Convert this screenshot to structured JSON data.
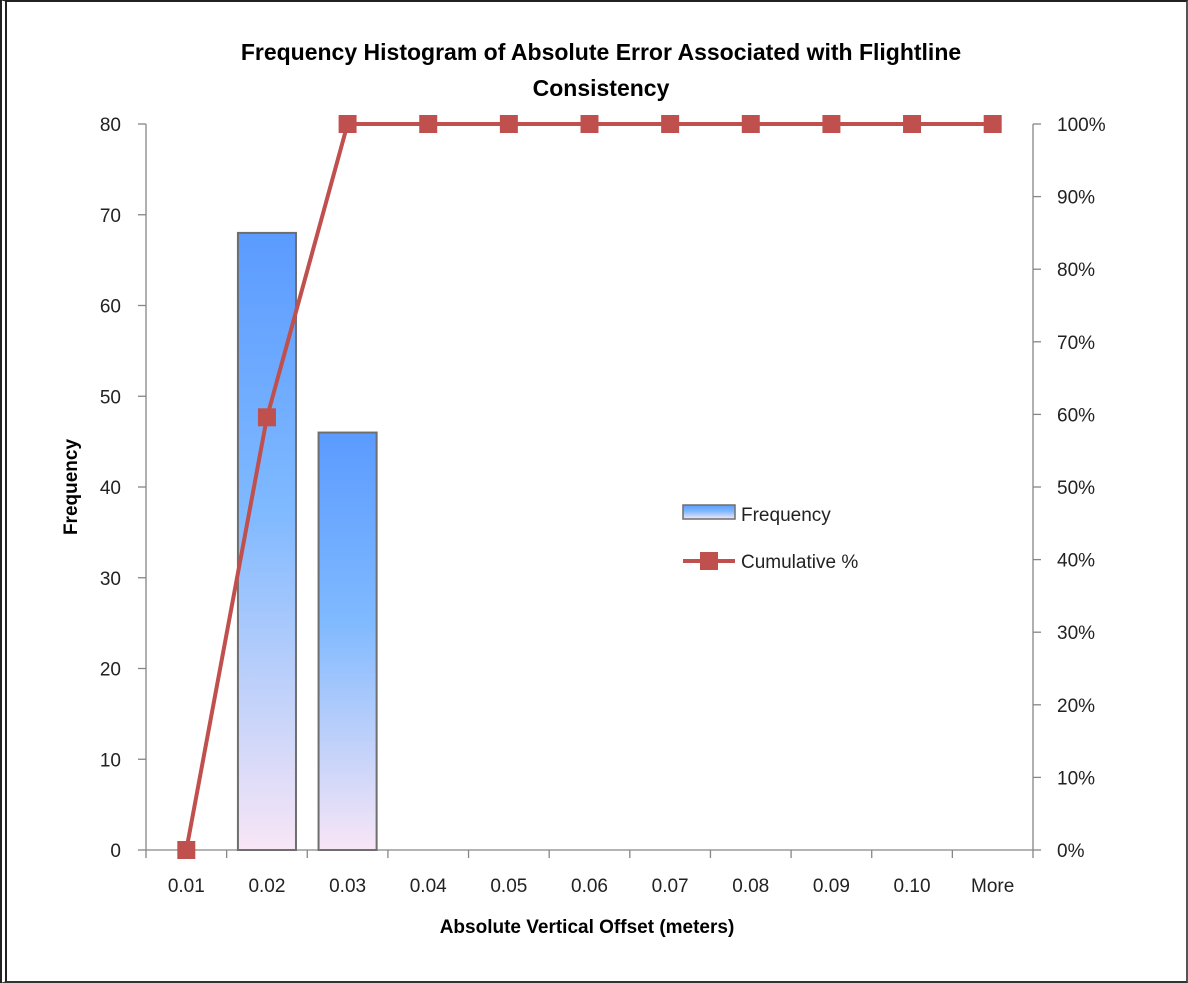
{
  "chart_data": {
    "type": "bar",
    "title": [
      "Frequency Histogram of Absolute Error Associated with Flightline",
      "Consistency"
    ],
    "xlabel": "Absolute Vertical Offset (meters)",
    "ylabel": "Frequency",
    "categories": [
      "0.01",
      "0.02",
      "0.03",
      "0.04",
      "0.05",
      "0.06",
      "0.07",
      "0.08",
      "0.09",
      "0.10",
      "More"
    ],
    "ylim": [
      0,
      80
    ],
    "yticks": [
      "0",
      "10",
      "20",
      "30",
      "40",
      "50",
      "60",
      "70",
      "80"
    ],
    "y2lim": [
      0,
      1
    ],
    "y2ticks": [
      "0%",
      "10%",
      "20%",
      "30%",
      "40%",
      "50%",
      "60%",
      "70%",
      "80%",
      "90%",
      "100%"
    ],
    "series": [
      {
        "name": "Frequency",
        "kind": "bar",
        "axis": "left",
        "values": [
          0,
          68,
          46,
          0,
          0,
          0,
          0,
          0,
          0,
          0,
          0
        ]
      },
      {
        "name": "Cumulative %",
        "kind": "line",
        "axis": "right",
        "values": [
          0.0,
          0.596,
          1.0,
          1.0,
          1.0,
          1.0,
          1.0,
          1.0,
          1.0,
          1.0,
          1.0
        ]
      }
    ],
    "legend_position": "center-right",
    "grid": false,
    "colors": {
      "bar_top": "#5b9bff",
      "bar_mid": "#7fb9ff",
      "bar_bottom": "#f8e6f6",
      "bar_border": "#6e6e6e",
      "line": "#c0504d",
      "axis": "#868686"
    }
  }
}
